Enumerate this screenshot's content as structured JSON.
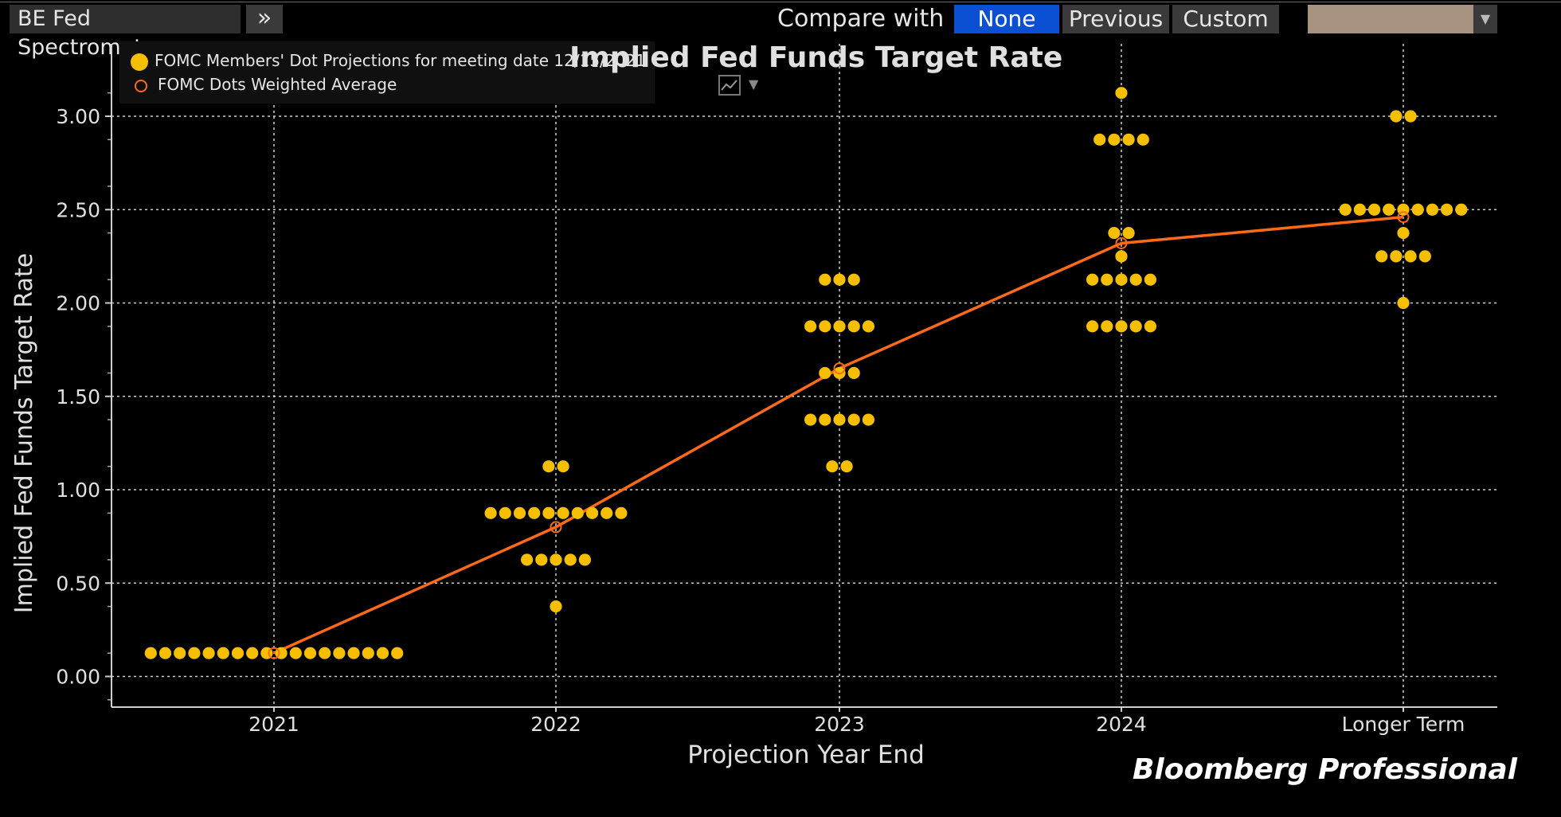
{
  "toolbar": {
    "app_name": "BE Fed Spectrometer",
    "expand_glyph": "»",
    "compare_label": "Compare with",
    "compare_options": [
      "None",
      "Previous",
      "Custom"
    ],
    "selected_option": "None",
    "swatch_color": "#a89380"
  },
  "legend": {
    "dots_label": "FOMC Members' Dot Projections for meeting date 12/15/2021",
    "avg_label": "FOMC Dots Weighted Average"
  },
  "brand": "Bloomberg Professional",
  "colors": {
    "dots": "#f5bf00",
    "average": "#ff6a1a",
    "grid": "#d0d0d0",
    "background": "#000000"
  },
  "chart_data": {
    "type": "scatter",
    "title": "Implied Fed Funds Target Rate",
    "xlabel": "Projection Year End",
    "ylabel": "Implied Fed Funds Target Rate",
    "categories": [
      "2021",
      "2022",
      "2023",
      "2024",
      "Longer Term"
    ],
    "ylim": [
      -0.125,
      3.375
    ],
    "yticks": [
      "0.00",
      "0.50",
      "1.00",
      "1.50",
      "2.00",
      "2.50",
      "3.00"
    ],
    "grid": true,
    "legend_position": "top-left",
    "series": [
      {
        "name": "FOMC Members' Dot Projections for meeting date 12/15/2021",
        "points": [
          {
            "category": "2021",
            "y": 0.125,
            "count": 18
          },
          {
            "category": "2022",
            "y": 0.375,
            "count": 1
          },
          {
            "category": "2022",
            "y": 0.625,
            "count": 5
          },
          {
            "category": "2022",
            "y": 0.875,
            "count": 10
          },
          {
            "category": "2022",
            "y": 1.125,
            "count": 2
          },
          {
            "category": "2023",
            "y": 1.125,
            "count": 2
          },
          {
            "category": "2023",
            "y": 1.375,
            "count": 5
          },
          {
            "category": "2023",
            "y": 1.625,
            "count": 3
          },
          {
            "category": "2023",
            "y": 1.875,
            "count": 5
          },
          {
            "category": "2023",
            "y": 2.125,
            "count": 3
          },
          {
            "category": "2024",
            "y": 1.875,
            "count": 5
          },
          {
            "category": "2024",
            "y": 2.125,
            "count": 5
          },
          {
            "category": "2024",
            "y": 2.25,
            "count": 1
          },
          {
            "category": "2024",
            "y": 2.375,
            "count": 2
          },
          {
            "category": "2024",
            "y": 2.875,
            "count": 4
          },
          {
            "category": "2024",
            "y": 3.125,
            "count": 1
          },
          {
            "category": "Longer Term",
            "y": 2.0,
            "count": 1
          },
          {
            "category": "Longer Term",
            "y": 2.25,
            "count": 4
          },
          {
            "category": "Longer Term",
            "y": 2.375,
            "count": 1
          },
          {
            "category": "Longer Term",
            "y": 2.5,
            "count": 9
          },
          {
            "category": "Longer Term",
            "y": 3.0,
            "count": 2
          }
        ]
      },
      {
        "name": "FOMC Dots Weighted Average",
        "type": "line",
        "values": [
          0.125,
          0.8,
          1.65,
          2.32,
          2.46
        ]
      }
    ]
  }
}
